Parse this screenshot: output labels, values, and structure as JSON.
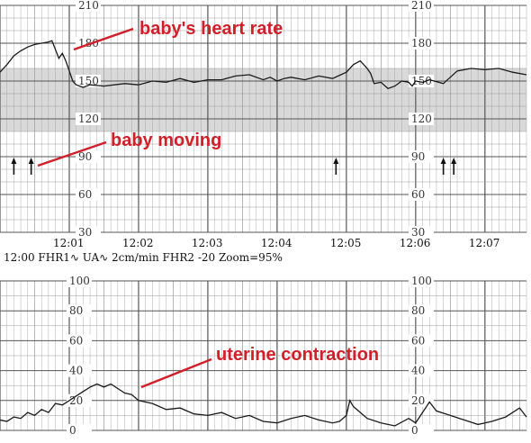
{
  "chart_data": [
    {
      "type": "line",
      "title": "",
      "ylabel": "",
      "ylim": [
        30,
        210
      ],
      "y_ticks": [
        210,
        180,
        150,
        120,
        90,
        60,
        30
      ],
      "normal_band": [
        110,
        160
      ],
      "time_labels": [
        "12:01",
        "12:02",
        "12:03",
        "12:04",
        "12:05",
        "12:06",
        "12:07"
      ],
      "series": [
        {
          "x": [
            12.0,
            12.1,
            12.2,
            12.3,
            12.4,
            12.5,
            12.6,
            12.7,
            12.75,
            12.8,
            12.85,
            12.9,
            12.95,
            13.0,
            13.05,
            13.1,
            13.15,
            13.2,
            13.3,
            13.5,
            13.8,
            14.0,
            14.2,
            14.4,
            14.6,
            14.8,
            15.0,
            15.2,
            15.4,
            15.6,
            15.8,
            15.9,
            16.0,
            16.1,
            16.2,
            16.4,
            16.6,
            16.8,
            17.0,
            17.1,
            17.2,
            17.3,
            17.35,
            17.4,
            17.5,
            17.6,
            17.7,
            17.8,
            17.9,
            17.95,
            18.0,
            18.1,
            18.2,
            18.4,
            18.6,
            18.8,
            19.0,
            19.2,
            19.4,
            19.6
          ],
          "y": [
            157,
            163,
            170,
            174,
            177,
            179,
            180,
            181,
            182,
            175,
            168,
            172,
            166,
            158,
            150,
            147,
            146,
            145,
            147,
            146,
            148,
            147,
            150,
            149,
            152,
            149,
            151,
            151,
            154,
            155,
            151,
            153,
            150,
            152,
            153,
            151,
            154,
            152,
            157,
            163,
            166,
            160,
            156,
            148,
            149,
            144,
            146,
            150,
            149,
            146,
            150,
            149,
            151,
            148,
            158,
            160,
            159,
            160,
            157,
            155
          ]
        }
      ]
    },
    {
      "type": "line",
      "title": "",
      "ylabel": "",
      "ylim": [
        0,
        100
      ],
      "y_ticks": [
        100,
        80,
        60,
        40,
        20,
        0
      ],
      "series": [
        {
          "x": [
            12.0,
            12.1,
            12.2,
            12.3,
            12.4,
            12.5,
            12.6,
            12.7,
            12.8,
            12.9,
            13.0,
            13.1,
            13.2,
            13.3,
            13.4,
            13.5,
            13.6,
            13.7,
            13.8,
            13.9,
            14.0,
            14.2,
            14.4,
            14.6,
            14.8,
            15.0,
            15.2,
            15.4,
            15.6,
            15.8,
            16.0,
            16.2,
            16.4,
            16.6,
            16.8,
            16.9,
            17.0,
            17.05,
            17.1,
            17.3,
            17.5,
            17.7,
            17.9,
            18.0,
            18.1,
            18.2,
            18.3,
            18.5,
            18.7,
            18.9,
            19.1,
            19.3,
            19.5,
            19.6
          ],
          "y": [
            7,
            6,
            9,
            8,
            12,
            10,
            14,
            12,
            18,
            17,
            20,
            23,
            26,
            29,
            31,
            29,
            31,
            28,
            25,
            24,
            20,
            18,
            14,
            15,
            11,
            10,
            12,
            8,
            10,
            6,
            5,
            8,
            10,
            7,
            5,
            6,
            10,
            20,
            16,
            8,
            5,
            3,
            8,
            5,
            12,
            19,
            13,
            10,
            7,
            4,
            6,
            9,
            15,
            9
          ]
        }
      ]
    }
  ],
  "info": {
    "text": "12:00  FHR1∿  UA∿  2cm/min  FHR2 -20  Zoom=95%"
  },
  "annotations": {
    "heart_rate": "baby's heart rate",
    "moving": "baby moving",
    "contraction": "uterine contraction"
  },
  "colors": {
    "annotation": "#d0202a",
    "grid_major": "#555555",
    "grid_minor": "#9a9a9a",
    "normal_band": "#d9d9d9",
    "trace": "#1a1a1a"
  }
}
